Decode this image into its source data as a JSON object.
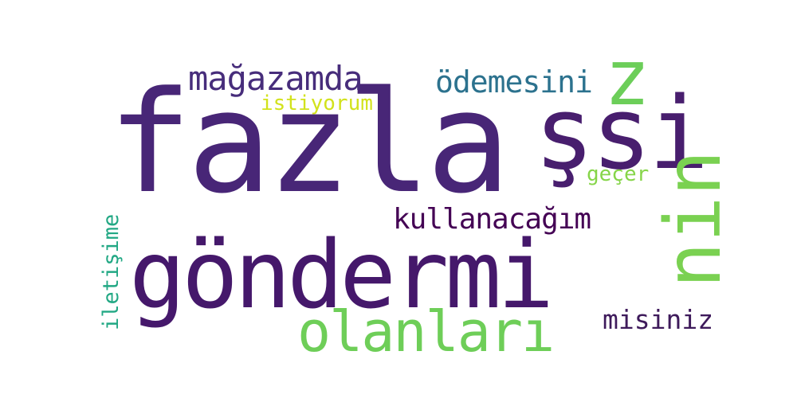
{
  "words": {
    "fazla": {
      "text": "fazla",
      "color": "#482677"
    },
    "si": {
      "text": "şsi",
      "color": "#481E6E"
    },
    "gondermi": {
      "text": "göndermi",
      "color": "#45186B"
    },
    "nin": {
      "text": "nin",
      "color": "#7AD151"
    },
    "z": {
      "text": "z",
      "color": "#6CCE59"
    },
    "magazamda": {
      "text": "mağazamda",
      "color": "#472D7B"
    },
    "odemesini": {
      "text": "ödemesini",
      "color": "#2C728E"
    },
    "istiyorum": {
      "text": "istiyorum",
      "color": "#D2E21B"
    },
    "gecer": {
      "text": "geçer",
      "color": "#86D549"
    },
    "kullanacagim": {
      "text": "kullanacağım",
      "color": "#440154"
    },
    "iletisime": {
      "text": "iletişime",
      "color": "#22A884"
    },
    "olanlari": {
      "text": "olanları",
      "color": "#6ECE58"
    },
    "misiniz": {
      "text": "misiniz",
      "color": "#3E1A5B"
    }
  }
}
